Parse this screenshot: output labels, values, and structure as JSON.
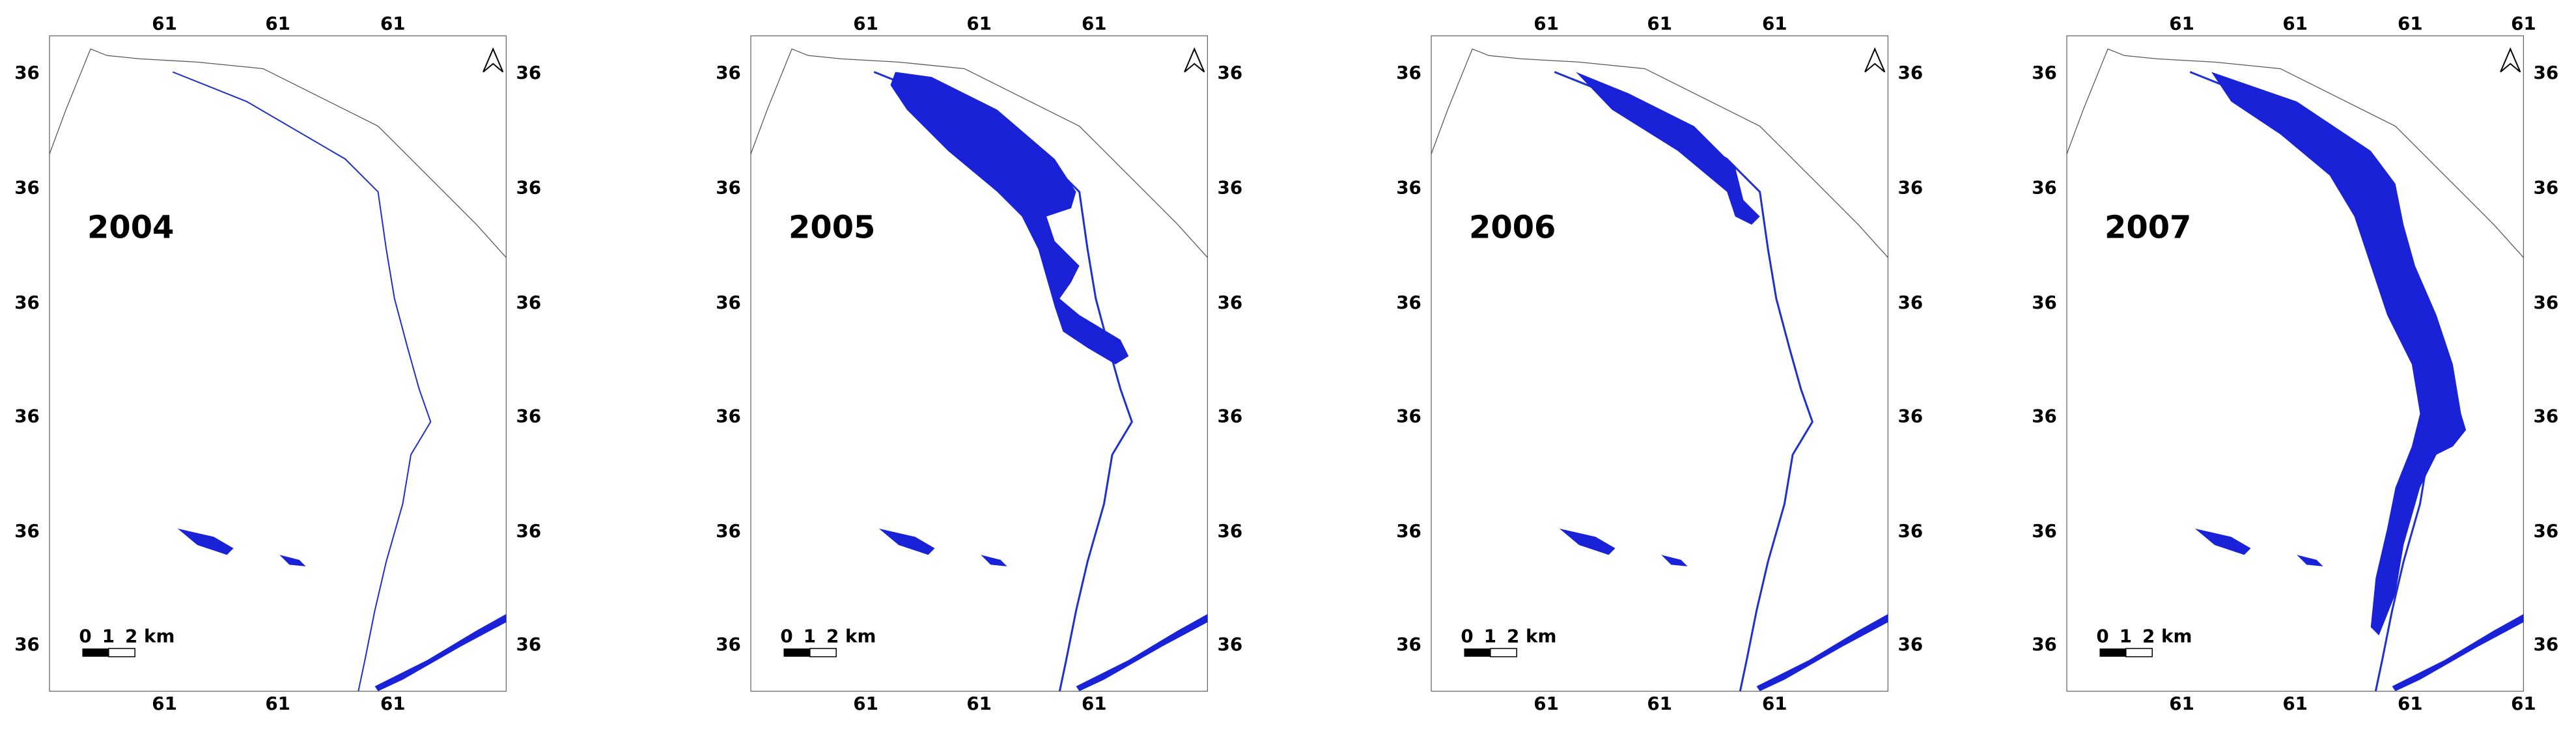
{
  "panels": [
    {
      "label": "2004",
      "top_ticks": [
        "61",
        "61",
        "61"
      ],
      "bottom_ticks": [
        "61",
        "61",
        "61"
      ],
      "left_ticks": [
        "36",
        "36",
        "36",
        "36",
        "36",
        "36"
      ],
      "right_ticks": [
        "36",
        "36",
        "36",
        "36",
        "36",
        "36"
      ],
      "scale_labels": [
        "0",
        "1",
        "2 km"
      ]
    },
    {
      "label": "2005",
      "top_ticks": [
        "61",
        "61",
        "61"
      ],
      "bottom_ticks": [
        "61",
        "61",
        "61"
      ],
      "left_ticks": [
        "36",
        "36",
        "36",
        "36",
        "36",
        "36"
      ],
      "right_ticks": [
        "36",
        "36",
        "36",
        "36",
        "36",
        "36"
      ],
      "scale_labels": [
        "0",
        "1",
        "2 km"
      ]
    },
    {
      "label": "2006",
      "top_ticks": [
        "61",
        "61",
        "61"
      ],
      "bottom_ticks": [
        "61",
        "61",
        "61"
      ],
      "left_ticks": [
        "36",
        "36",
        "36",
        "36",
        "36",
        "36"
      ],
      "right_ticks": [
        "36",
        "36",
        "36",
        "36",
        "36",
        "36"
      ],
      "scale_labels": [
        "0",
        "1",
        "2 km"
      ]
    },
    {
      "label": "2007",
      "top_ticks": [
        "61",
        "61",
        "61",
        "61"
      ],
      "bottom_ticks": [
        "61",
        "61",
        "61",
        "61"
      ],
      "left_ticks": [
        "36",
        "36",
        "36",
        "36",
        "36",
        "36"
      ],
      "right_ticks": [
        "36",
        "36",
        "36",
        "36",
        "36",
        "36"
      ],
      "scale_labels": [
        "0",
        "1",
        "2 km"
      ]
    }
  ]
}
